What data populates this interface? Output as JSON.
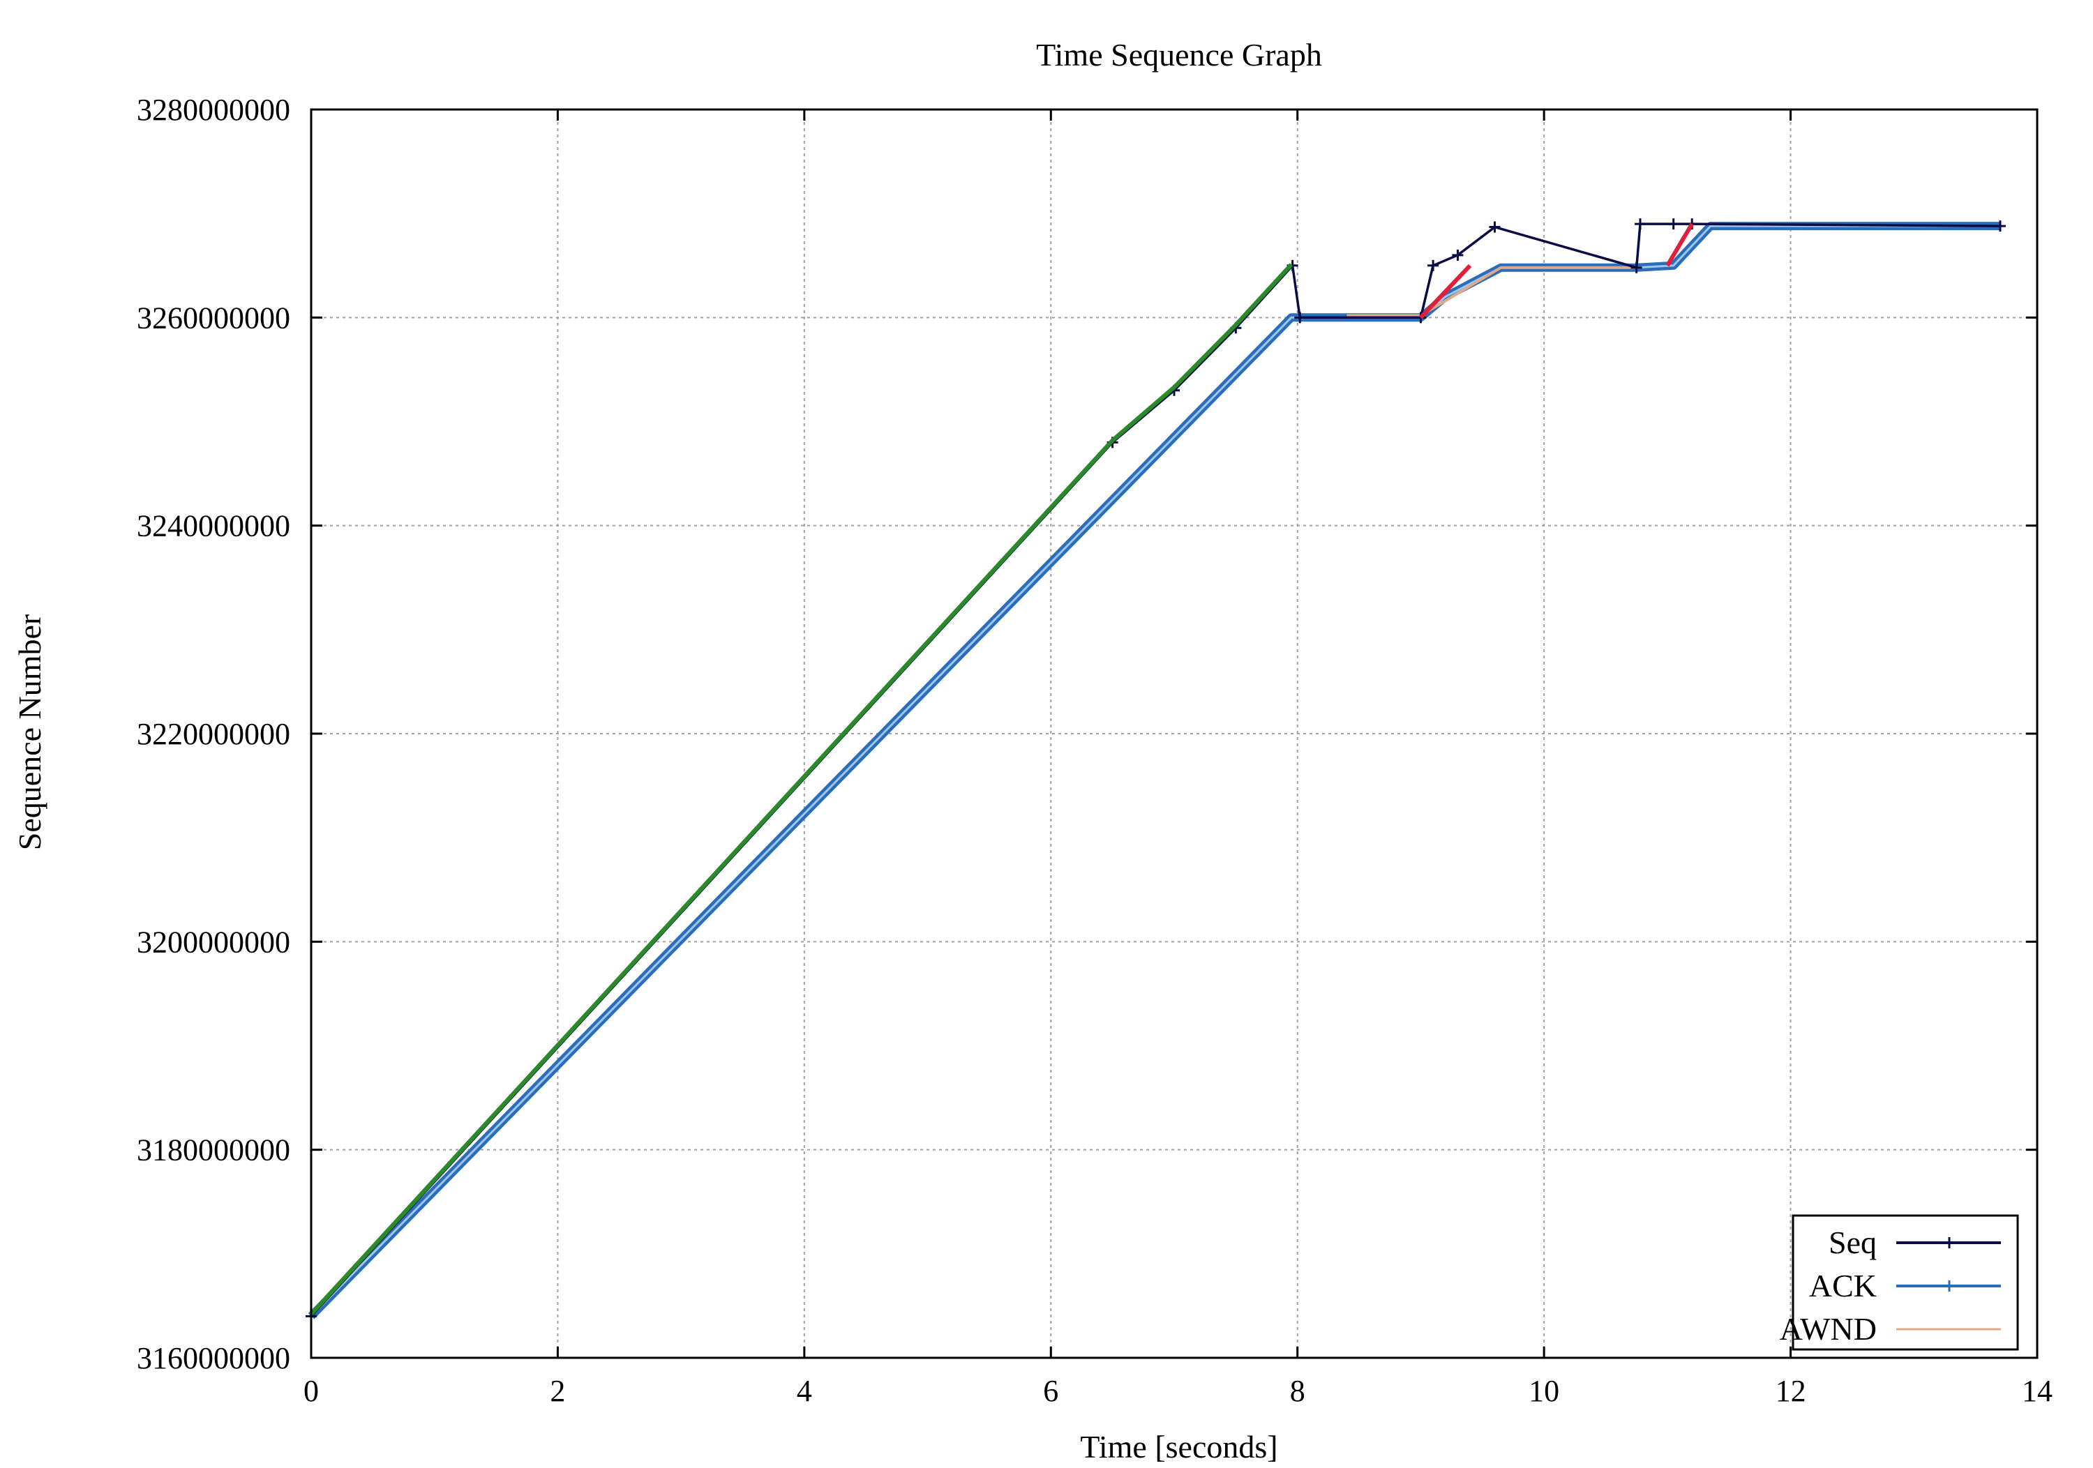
{
  "chart_data": {
    "type": "line",
    "title": "Time Sequence Graph",
    "xlabel": "Time [seconds]",
    "ylabel": "Sequence Number",
    "xlim": [
      0,
      14
    ],
    "ylim": [
      3160000000,
      3280000000
    ],
    "x_ticks": [
      0,
      2,
      4,
      6,
      8,
      10,
      12,
      14
    ],
    "x_tick_labels": [
      "0",
      "2",
      "4",
      "6",
      "8",
      "10",
      "12",
      "14"
    ],
    "y_ticks": [
      3160000000,
      3180000000,
      3200000000,
      3220000000,
      3240000000,
      3260000000,
      3280000000
    ],
    "y_tick_labels": [
      "3160000000",
      "3180000000",
      "3200000000",
      "3220000000",
      "3240000000",
      "3260000000",
      "3280000000"
    ],
    "grid": true,
    "legend_position": "bottom-right",
    "series": [
      {
        "name": "Seq",
        "color": "#0b0b45",
        "points": [
          [
            0,
            3164000000
          ],
          [
            6.5,
            3248000000
          ],
          [
            7.0,
            3253000000
          ],
          [
            7.5,
            3259000000
          ],
          [
            7.96,
            3265000000
          ],
          [
            8.02,
            3260000000
          ],
          [
            9.0,
            3260000000
          ],
          [
            9.1,
            3265000000
          ],
          [
            9.3,
            3266000000
          ],
          [
            9.6,
            3268700000
          ],
          [
            10.75,
            3264800000
          ],
          [
            10.78,
            3269000000
          ],
          [
            11.05,
            3269000000
          ],
          [
            11.2,
            3269000000
          ],
          [
            13.7,
            3268800000
          ]
        ]
      },
      {
        "name": "ACK",
        "color": "#2a6ebb",
        "points": [
          [
            0,
            3164000000
          ],
          [
            7.95,
            3260000000
          ],
          [
            8.4,
            3260000000
          ],
          [
            9.0,
            3260000000
          ],
          [
            9.2,
            3262000000
          ],
          [
            9.65,
            3264800000
          ],
          [
            10.75,
            3264800000
          ],
          [
            11.05,
            3265000000
          ],
          [
            11.35,
            3268800000
          ],
          [
            13.7,
            3268800000
          ]
        ]
      },
      {
        "name": "AWND",
        "color": "#e0a98a",
        "points": [
          [
            8.4,
            3260200000
          ],
          [
            9.0,
            3260200000
          ],
          [
            9.65,
            3264800000
          ],
          [
            10.75,
            3264800000
          ]
        ]
      }
    ],
    "aux_series": [
      {
        "color": "#2a8a2a",
        "points": [
          [
            0,
            3164200000
          ],
          [
            6.5,
            3248200000
          ],
          [
            7.0,
            3253300000
          ],
          [
            7.5,
            3259300000
          ],
          [
            7.95,
            3265100000
          ]
        ]
      },
      {
        "color": "#e0203a",
        "points": [
          [
            9.0,
            3260000000
          ],
          [
            9.2,
            3262500000
          ],
          [
            9.4,
            3265000000
          ]
        ]
      },
      {
        "color": "#e0203a",
        "points": [
          [
            11.0,
            3265000000
          ],
          [
            11.2,
            3269000000
          ]
        ]
      }
    ]
  }
}
